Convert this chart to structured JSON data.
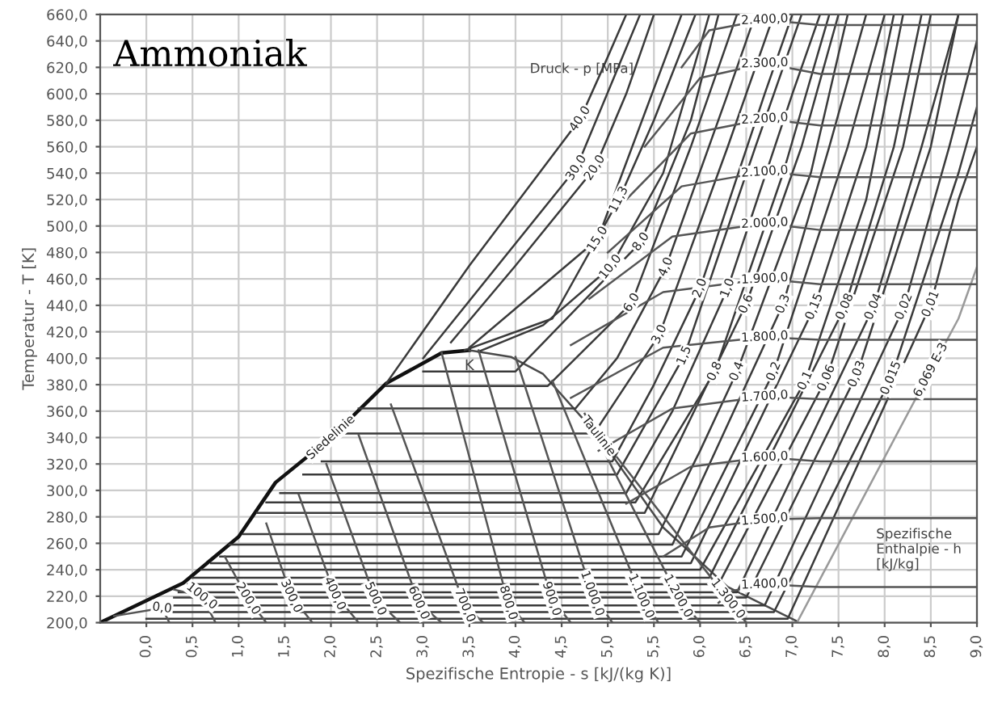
{
  "chart_data": {
    "type": "line",
    "title": "Ammoniak",
    "xlabel": "Spezifische Entropie - s [kJ/(kg K)]",
    "ylabel": "Temperatur - T [K]",
    "xlim": [
      -0.5,
      9.0
    ],
    "ylim": [
      200,
      660
    ],
    "xticks": [
      {
        "value": 0,
        "label": "0,0"
      },
      {
        "value": 0.5,
        "label": "0,5"
      },
      {
        "value": 1,
        "label": "1,0"
      },
      {
        "value": 1.5,
        "label": "1,5"
      },
      {
        "value": 2,
        "label": "2,0"
      },
      {
        "value": 2.5,
        "label": "2,5"
      },
      {
        "value": 3,
        "label": "3,0"
      },
      {
        "value": 3.5,
        "label": "3,5"
      },
      {
        "value": 4,
        "label": "4,0"
      },
      {
        "value": 4.5,
        "label": "4,5"
      },
      {
        "value": 5,
        "label": "5,0"
      },
      {
        "value": 5.5,
        "label": "5,5"
      },
      {
        "value": 6,
        "label": "6,0"
      },
      {
        "value": 6.5,
        "label": "6,5"
      },
      {
        "value": 7,
        "label": "7,0"
      },
      {
        "value": 7.5,
        "label": "7,5"
      },
      {
        "value": 8,
        "label": "8,0"
      },
      {
        "value": 8.5,
        "label": "8,5"
      },
      {
        "value": 9,
        "label": "9,0"
      }
    ],
    "yticks": [
      {
        "value": 200,
        "label": "200,0"
      },
      {
        "value": 220,
        "label": "220,0"
      },
      {
        "value": 240,
        "label": "240,0"
      },
      {
        "value": 260,
        "label": "260,0"
      },
      {
        "value": 280,
        "label": "280,0"
      },
      {
        "value": 300,
        "label": "300,0"
      },
      {
        "value": 320,
        "label": "320,0"
      },
      {
        "value": 340,
        "label": "340,0"
      },
      {
        "value": 360,
        "label": "360,0"
      },
      {
        "value": 380,
        "label": "380,0"
      },
      {
        "value": 400,
        "label": "400,0"
      },
      {
        "value": 420,
        "label": "420,0"
      },
      {
        "value": 440,
        "label": "440,0"
      },
      {
        "value": 460,
        "label": "460,0"
      },
      {
        "value": 480,
        "label": "480,0"
      },
      {
        "value": 500,
        "label": "500,0"
      },
      {
        "value": 520,
        "label": "520,0"
      },
      {
        "value": 540,
        "label": "540,0"
      },
      {
        "value": 560,
        "label": "560,0"
      },
      {
        "value": 580,
        "label": "580,0"
      },
      {
        "value": 600,
        "label": "600,0"
      },
      {
        "value": 620,
        "label": "620,0"
      },
      {
        "value": 640,
        "label": "640,0"
      },
      {
        "value": 660,
        "label": "660,0"
      }
    ],
    "grid": true,
    "legend": false,
    "marker": "none",
    "line_style": "solid",
    "annotations": [
      {
        "text": "K",
        "x": 3.5,
        "y": 406
      },
      "Druck - p [MPa]",
      "Spezifische Enthalpie - h [kJ/kg]"
    ],
    "series": [
      {
        "name": "Siedelinie",
        "color": "#111111",
        "x": [
          -0.5,
          0.4,
          1.0,
          1.4,
          2.0,
          2.6,
          3.2,
          3.5
        ],
        "values": [
          200,
          230,
          265,
          306,
          340,
          381,
          404,
          406
        ]
      },
      {
        "name": "Taulinie",
        "color": "#4a4a4a",
        "x": [
          3.5,
          3.95,
          4.3,
          4.9,
          5.6,
          6.3,
          7.05
        ],
        "values": [
          406,
          401,
          388,
          341,
          272,
          227,
          201
        ]
      },
      {
        "name": "40,0",
        "color": "#3a3a3a",
        "x": [
          2.6,
          3.5,
          4.7,
          4.95,
          5.2
        ],
        "values": [
          381,
          470,
          581,
          620,
          660
        ]
      },
      {
        "name": "30,0",
        "color": "#3a3a3a",
        "x": [
          3.0,
          4.66,
          5.35
        ],
        "values": [
          400,
          544,
          660
        ]
      },
      {
        "name": "20,0",
        "color": "#3a3a3a",
        "x": [
          3.3,
          4.0,
          4.86,
          5.2,
          5.5
        ],
        "values": [
          412,
          470,
          544,
          600,
          660
        ]
      },
      {
        "name": "15,0",
        "color": "#3a3a3a",
        "x": [
          3.5,
          4.89,
          5.8
        ],
        "values": [
          408,
          490,
          660
        ]
      },
      {
        "name": "11,3",
        "color": "#3a3a3a",
        "x": [
          3.45,
          4.4,
          5.12,
          5.5,
          5.95
        ],
        "values": [
          406,
          430,
          520,
          580,
          660
        ]
      },
      {
        "name": "10,0",
        "color": "#3a3a3a",
        "x": [
          3.6,
          4.3,
          5.03,
          5.6,
          6.1
        ],
        "values": [
          405,
          425,
          469,
          540,
          660
        ]
      },
      {
        "name": "8,0",
        "color": "#3a3a3a",
        "x": [
          3.0,
          4.0,
          5.36,
          5.9,
          6.2
        ],
        "values": [
          390,
          390,
          488,
          580,
          660
        ]
      },
      {
        "name": "6,0",
        "color": "#3a3a3a",
        "x": [
          2.6,
          4.35,
          5.26,
          5.9,
          6.4
        ],
        "values": [
          379,
          379,
          442,
          560,
          660
        ]
      },
      {
        "name": "4,0",
        "color": "#3a3a3a",
        "x": [
          2.3,
          4.65,
          5.1,
          5.63,
          6.3,
          6.6
        ],
        "values": [
          362,
          362,
          400,
          469,
          600,
          660
        ]
      },
      {
        "name": "3,0",
        "color": "#3a3a3a",
        "x": [
          2.1,
          4.85,
          5.56,
          6.3,
          6.8
        ],
        "values": [
          343,
          343,
          418,
          560,
          660
        ]
      },
      {
        "name": "2,0",
        "color": "#3a3a3a",
        "x": [
          1.9,
          5.05,
          5.5,
          6.0,
          6.7,
          7.0
        ],
        "values": [
          322,
          322,
          380,
          453,
          600,
          660
        ]
      },
      {
        "name": "1,5",
        "color": "#3a3a3a",
        "x": [
          1.7,
          5.1,
          5.83,
          6.6,
          7.1
        ],
        "values": [
          312,
          312,
          402,
          560,
          660
        ]
      },
      {
        "name": "1,0",
        "color": "#3a3a3a",
        "x": [
          1.45,
          5.2,
          5.7,
          6.3,
          7.0,
          7.3
        ],
        "values": [
          298,
          298,
          360,
          453,
          600,
          660
        ]
      },
      {
        "name": "0,8",
        "color": "#3a3a3a",
        "x": [
          1.3,
          5.3,
          6.16,
          6.9,
          7.4
        ],
        "values": [
          291,
          291,
          390,
          540,
          660
        ]
      },
      {
        "name": "0,6",
        "color": "#3a3a3a",
        "x": [
          1.2,
          5.4,
          6.5,
          7.1,
          7.5
        ],
        "values": [
          283,
          283,
          441,
          560,
          660
        ]
      },
      {
        "name": "0,4",
        "color": "#3a3a3a",
        "x": [
          1.05,
          5.55,
          6.0,
          6.4,
          7.2,
          7.6
        ],
        "values": [
          267,
          267,
          330,
          390,
          540,
          660
        ]
      },
      {
        "name": "0,3",
        "color": "#3a3a3a",
        "x": [
          0.9,
          5.7,
          6.9,
          7.4,
          7.8
        ],
        "values": [
          259,
          259,
          441,
          560,
          660
        ]
      },
      {
        "name": "0,2",
        "color": "#3a3a3a",
        "x": [
          0.8,
          5.8,
          6.8,
          7.6,
          8.0
        ],
        "values": [
          250,
          250,
          390,
          560,
          660
        ]
      },
      {
        "name": "0,15",
        "color": "#3a3a3a",
        "x": [
          0.7,
          5.9,
          7.24,
          7.8,
          8.1
        ],
        "values": [
          245,
          245,
          439,
          560,
          660
        ]
      },
      {
        "name": "0,1",
        "color": "#3a3a3a",
        "x": [
          0.6,
          6.0,
          7.14,
          7.8,
          8.2
        ],
        "values": [
          240,
          240,
          383,
          520,
          660
        ]
      },
      {
        "name": "0,08",
        "color": "#3a3a3a",
        "x": [
          0.5,
          6.1,
          7.57,
          8.1,
          8.4
        ],
        "values": [
          234,
          234,
          439,
          560,
          660
        ]
      },
      {
        "name": "0,06",
        "color": "#3a3a3a",
        "x": [
          0.45,
          6.2,
          7.37,
          8.2,
          8.5
        ],
        "values": [
          229,
          229,
          385,
          560,
          660
        ]
      },
      {
        "name": "0,04",
        "color": "#3a3a3a",
        "x": [
          0.35,
          6.4,
          7.88,
          8.4,
          8.8
        ],
        "values": [
          223,
          223,
          439,
          560,
          660
        ]
      },
      {
        "name": "0,03",
        "color": "#3a3a3a",
        "x": [
          0.3,
          6.5,
          7.7,
          8.5,
          8.8
        ],
        "values": [
          219,
          219,
          388,
          560,
          660
        ]
      },
      {
        "name": "0,02",
        "color": "#3a3a3a",
        "x": [
          0.2,
          6.7,
          8.21,
          8.7,
          9.0
        ],
        "values": [
          213,
          213,
          439,
          560,
          640
        ]
      },
      {
        "name": "0,015",
        "color": "#3a3a3a",
        "x": [
          0.1,
          6.8,
          8.07,
          8.8,
          9.0
        ],
        "values": [
          208,
          208,
          385,
          540,
          590
        ]
      },
      {
        "name": "0,01",
        "color": "#3a3a3a",
        "x": [
          0.0,
          6.95,
          8.5,
          8.8,
          9.0
        ],
        "values": [
          203,
          203,
          441,
          520,
          560
        ]
      },
      {
        "name": "6,069 E-3",
        "color": "#9a9a9a",
        "x": [
          -0.45,
          7.05,
          8.5,
          8.8,
          9.0
        ],
        "values": [
          200,
          200,
          391,
          430,
          469
        ]
      },
      {
        "name": "0,0",
        "color": "#555555",
        "x": [
          -0.35,
          0.17,
          0.25
        ],
        "values": [
          205,
          211,
          200
        ]
      },
      {
        "name": "100,0",
        "color": "#555555",
        "x": [
          0.3,
          0.6,
          0.75
        ],
        "values": [
          225,
          220,
          200
        ]
      },
      {
        "name": "200,0",
        "color": "#555555",
        "x": [
          0.85,
          1.1,
          1.3
        ],
        "values": [
          250,
          218,
          200
        ]
      },
      {
        "name": "300,0",
        "color": "#555555",
        "x": [
          1.3,
          1.57,
          1.8
        ],
        "values": [
          275,
          220,
          200
        ]
      },
      {
        "name": "400,0",
        "color": "#555555",
        "x": [
          1.65,
          2.04,
          2.3
        ],
        "values": [
          297,
          222,
          200
        ]
      },
      {
        "name": "500,0",
        "color": "#555555",
        "x": [
          1.95,
          2.48,
          2.75
        ],
        "values": [
          320,
          218,
          200
        ]
      },
      {
        "name": "600,0",
        "color": "#555555",
        "x": [
          2.3,
          2.95,
          3.2
        ],
        "values": [
          342,
          215,
          200
        ]
      },
      {
        "name": "700,0",
        "color": "#555555",
        "x": [
          2.65,
          3.45,
          3.65
        ],
        "values": [
          365,
          213,
          200
        ]
      },
      {
        "name": "800,0",
        "color": "#555555",
        "x": [
          3.2,
          3.92,
          4.1
        ],
        "values": [
          404,
          215,
          200
        ]
      },
      {
        "name": "900,0",
        "color": "#555555",
        "x": [
          3.6,
          4.39,
          4.6
        ],
        "values": [
          406,
          218,
          200
        ]
      },
      {
        "name": "1.000,0",
        "color": "#555555",
        "x": [
          4.0,
          4.83,
          5.05
        ],
        "values": [
          401,
          222,
          200
        ]
      },
      {
        "name": "1.100,0",
        "color": "#555555",
        "x": [
          4.4,
          5.36,
          5.55
        ],
        "values": [
          383,
          220,
          200
        ]
      },
      {
        "name": "1.200,0",
        "color": "#555555",
        "x": [
          4.75,
          5.76,
          6.0
        ],
        "values": [
          358,
          220,
          200
        ]
      },
      {
        "name": "1.300,0",
        "color": "#555555",
        "x": [
          5.1,
          6.3,
          6.5
        ],
        "values": [
          325,
          218,
          200
        ]
      },
      {
        "name": "1.400,0",
        "color": "#555555",
        "x": [
          6.2,
          6.35,
          6.7,
          7.3,
          9.0
        ],
        "values": [
          215,
          224,
          229,
          227,
          227
        ]
      },
      {
        "name": "1.500,0",
        "color": "#555555",
        "x": [
          5.6,
          6.1,
          6.7,
          7.3,
          9.0
        ],
        "values": [
          250,
          272,
          278,
          279,
          279
        ]
      },
      {
        "name": "1.600,0",
        "color": "#555555",
        "x": [
          5.2,
          5.9,
          6.7,
          7.3,
          9.0
        ],
        "values": [
          290,
          318,
          325,
          322,
          322
        ]
      },
      {
        "name": "1.700,0",
        "color": "#555555",
        "x": [
          4.9,
          5.7,
          6.7,
          7.3,
          9.0
        ],
        "values": [
          330,
          362,
          371,
          369,
          369
        ]
      },
      {
        "name": "1.800,0",
        "color": "#555555",
        "x": [
          4.6,
          5.6,
          6.7,
          7.3,
          9.0
        ],
        "values": [
          370,
          408,
          416,
          414,
          414
        ]
      },
      {
        "name": "1.900,0",
        "color": "#555555",
        "x": [
          4.6,
          5.6,
          6.7,
          7.3,
          9.0
        ],
        "values": [
          410,
          450,
          460,
          456,
          456
        ]
      },
      {
        "name": "2.000,0",
        "color": "#555555",
        "x": [
          4.8,
          5.7,
          6.7,
          7.3,
          9.0
        ],
        "values": [
          445,
          492,
          502,
          497,
          497
        ]
      },
      {
        "name": "2.100,0",
        "color": "#555555",
        "x": [
          5.0,
          5.8,
          6.7,
          7.3,
          9.0
        ],
        "values": [
          480,
          530,
          541,
          537,
          537
        ]
      },
      {
        "name": "2.200,0",
        "color": "#555555",
        "x": [
          5.2,
          5.9,
          6.7,
          7.3,
          9.0
        ],
        "values": [
          520,
          570,
          581,
          576,
          576
        ]
      },
      {
        "name": "2.300,0",
        "color": "#555555",
        "x": [
          5.4,
          6.0,
          6.7,
          7.3,
          9.0
        ],
        "values": [
          560,
          612,
          623,
          615,
          615
        ]
      },
      {
        "name": "2.400,0",
        "color": "#555555",
        "x": [
          5.8,
          6.1,
          6.7,
          7.3,
          9.0
        ],
        "values": [
          620,
          648,
          656,
          652,
          652
        ]
      }
    ]
  }
}
